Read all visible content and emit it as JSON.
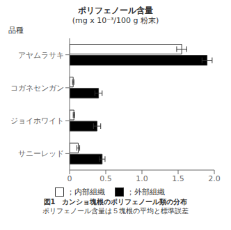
{
  "chart_data": {
    "type": "bar",
    "orientation": "horizontal",
    "title": "ポリフェノール含量",
    "subtitle": "(mg x 10⁻³/100 g 粉末)",
    "ylabel": "品種",
    "categories": [
      "アヤムラサキ",
      "コガネセンガン",
      "ジョイホワイト",
      "サニーレッド"
    ],
    "series": [
      {
        "name": "；内部組織",
        "color": "white",
        "values": [
          1.55,
          0.05,
          0.06,
          0.12
        ],
        "errors": [
          0.07,
          0.01,
          0.01,
          0.02
        ]
      },
      {
        "name": "；外部組織",
        "color": "black",
        "values": [
          1.9,
          0.4,
          0.38,
          0.45
        ],
        "errors": [
          0.07,
          0.05,
          0.05,
          0.04
        ]
      }
    ],
    "xlim": [
      0,
      2.0
    ],
    "xticks": [
      0,
      0.5,
      {
        "value": 1.0,
        "label": "1.0"
      },
      1.5,
      {
        "value": 2.0,
        "label": "2.0"
      }
    ],
    "grid": false,
    "legend": "bottom",
    "annotations": [
      "図1　カンショ塊根のポリフェノール類の分布",
      "ポリフェノール含量は５塊根の平均と標準誤差"
    ]
  }
}
